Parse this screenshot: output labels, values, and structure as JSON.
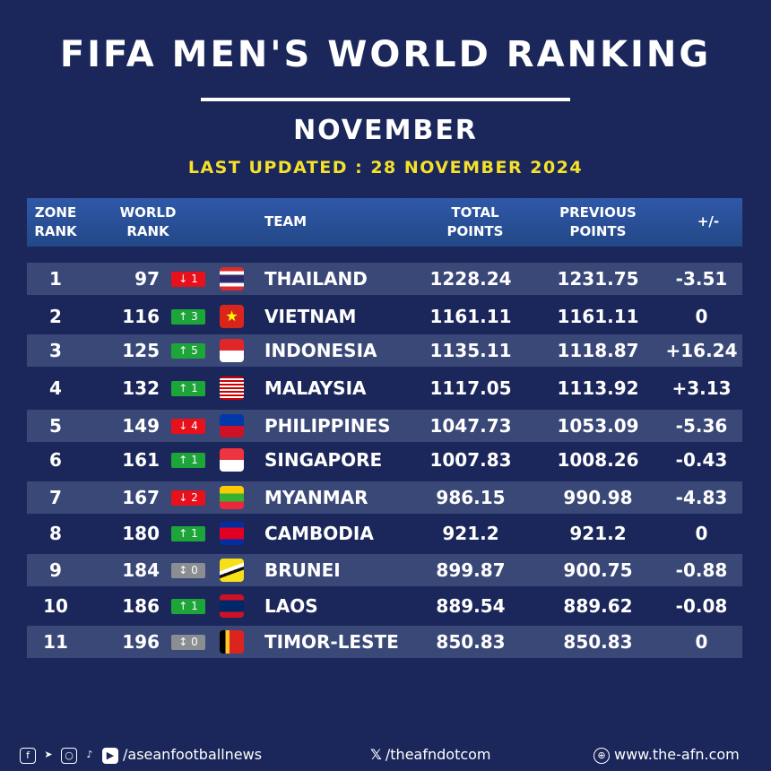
{
  "title": "FIFA MEN'S WORLD RANKING",
  "subtitle": "NOVEMBER",
  "updated": "LAST UPDATED : 28 NOVEMBER 2024",
  "headers": {
    "zone": [
      "ZONE",
      "RANK"
    ],
    "world": [
      "WORLD",
      "RANK"
    ],
    "team": "TEAM",
    "total": [
      "TOTAL",
      "POINTS"
    ],
    "previous": [
      "PREVIOUS",
      "POINTS"
    ],
    "diff": "+/-"
  },
  "rows": [
    {
      "zone": "1",
      "world": "97",
      "move": "↓ 1",
      "dir": "down",
      "team": "THAILAND",
      "flag": "thailand",
      "total": "1228.24",
      "prev": "1231.75",
      "diff": "-3.51"
    },
    {
      "zone": "2",
      "world": "116",
      "move": "↑ 3",
      "dir": "up",
      "team": "VIETNAM",
      "flag": "vietnam",
      "total": "1161.11",
      "prev": "1161.11",
      "diff": "0"
    },
    {
      "zone": "3",
      "world": "125",
      "move": "↑ 5",
      "dir": "up",
      "team": "INDONESIA",
      "flag": "indonesia",
      "total": "1135.11",
      "prev": "1118.87",
      "diff": "+16.24"
    },
    {
      "zone": "4",
      "world": "132",
      "move": "↑ 1",
      "dir": "up",
      "team": "MALAYSIA",
      "flag": "malaysia",
      "total": "1117.05",
      "prev": "1113.92",
      "diff": "+3.13"
    },
    {
      "zone": "5",
      "world": "149",
      "move": "↓ 4",
      "dir": "down",
      "team": "PHILIPPINES",
      "flag": "philippines",
      "total": "1047.73",
      "prev": "1053.09",
      "diff": "-5.36"
    },
    {
      "zone": "6",
      "world": "161",
      "move": "↑ 1",
      "dir": "up",
      "team": "SINGAPORE",
      "flag": "singapore",
      "total": "1007.83",
      "prev": "1008.26",
      "diff": "-0.43"
    },
    {
      "zone": "7",
      "world": "167",
      "move": "↓ 2",
      "dir": "down",
      "team": "MYANMAR",
      "flag": "myanmar",
      "total": "986.15",
      "prev": "990.98",
      "diff": "-4.83"
    },
    {
      "zone": "8",
      "world": "180",
      "move": "↑ 1",
      "dir": "up",
      "team": "CAMBODIA",
      "flag": "cambodia",
      "total": "921.2",
      "prev": "921.2",
      "diff": "0"
    },
    {
      "zone": "9",
      "world": "184",
      "move": "↕ 0",
      "dir": "same",
      "team": "BRUNEI",
      "flag": "brunei",
      "total": "899.87",
      "prev": "900.75",
      "diff": "-0.88"
    },
    {
      "zone": "10",
      "world": "186",
      "move": "↑ 1",
      "dir": "up",
      "team": "LAOS",
      "flag": "laos",
      "total": "889.54",
      "prev": "889.62",
      "diff": "-0.08"
    },
    {
      "zone": "11",
      "world": "196",
      "move": "↕ 0",
      "dir": "same",
      "team": "TIMOR-LESTE",
      "flag": "timor-leste",
      "total": "850.83",
      "prev": "850.83",
      "diff": "0"
    }
  ],
  "footer": {
    "social": "/aseanfootballnews",
    "x": "/theafndotcom",
    "web": "www.the-afn.com"
  },
  "colors": {
    "background": "#1b275a",
    "header": "#2f58a8",
    "accent": "#f5e12a",
    "down": "#e8101a",
    "up": "#1ea53a",
    "same": "#8a8d92"
  }
}
